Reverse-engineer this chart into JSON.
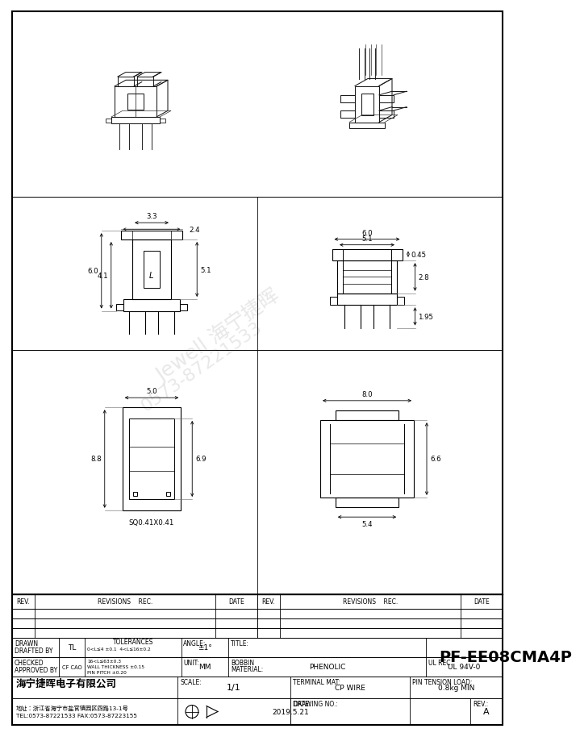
{
  "title": "PF-EE08CMA4P",
  "company_name": "海宁捷晖电子有限公司",
  "company_addr": "地址：浙江省海宁市盐官镇园区四路13-1号",
  "company_tel": "TEL:0573-87221533 FAX:0573-87223155",
  "drawn_by": "TL",
  "checked_by": "CF CAO",
  "angle": "±1°",
  "unit": "MM",
  "bobbin_material": "PHENOLIC",
  "ul_rec": "UL 94V-0",
  "terminal_mat": "CP WIRE",
  "pin_tension": "0.8kg MIN",
  "scale": "1/1",
  "date": "2019.5.21",
  "drawing_no": "",
  "rev": "A",
  "bg_color": "#ffffff",
  "line_color": "#000000",
  "tol_line1": "0<L≤4 ±0.1  4<L≤16±0.2",
  "tol_line2": "16<L≤63±0.3",
  "tol_line3": "WALL THICKNESS ±0.15",
  "tol_line4": "PIN PITCH ±0.20"
}
